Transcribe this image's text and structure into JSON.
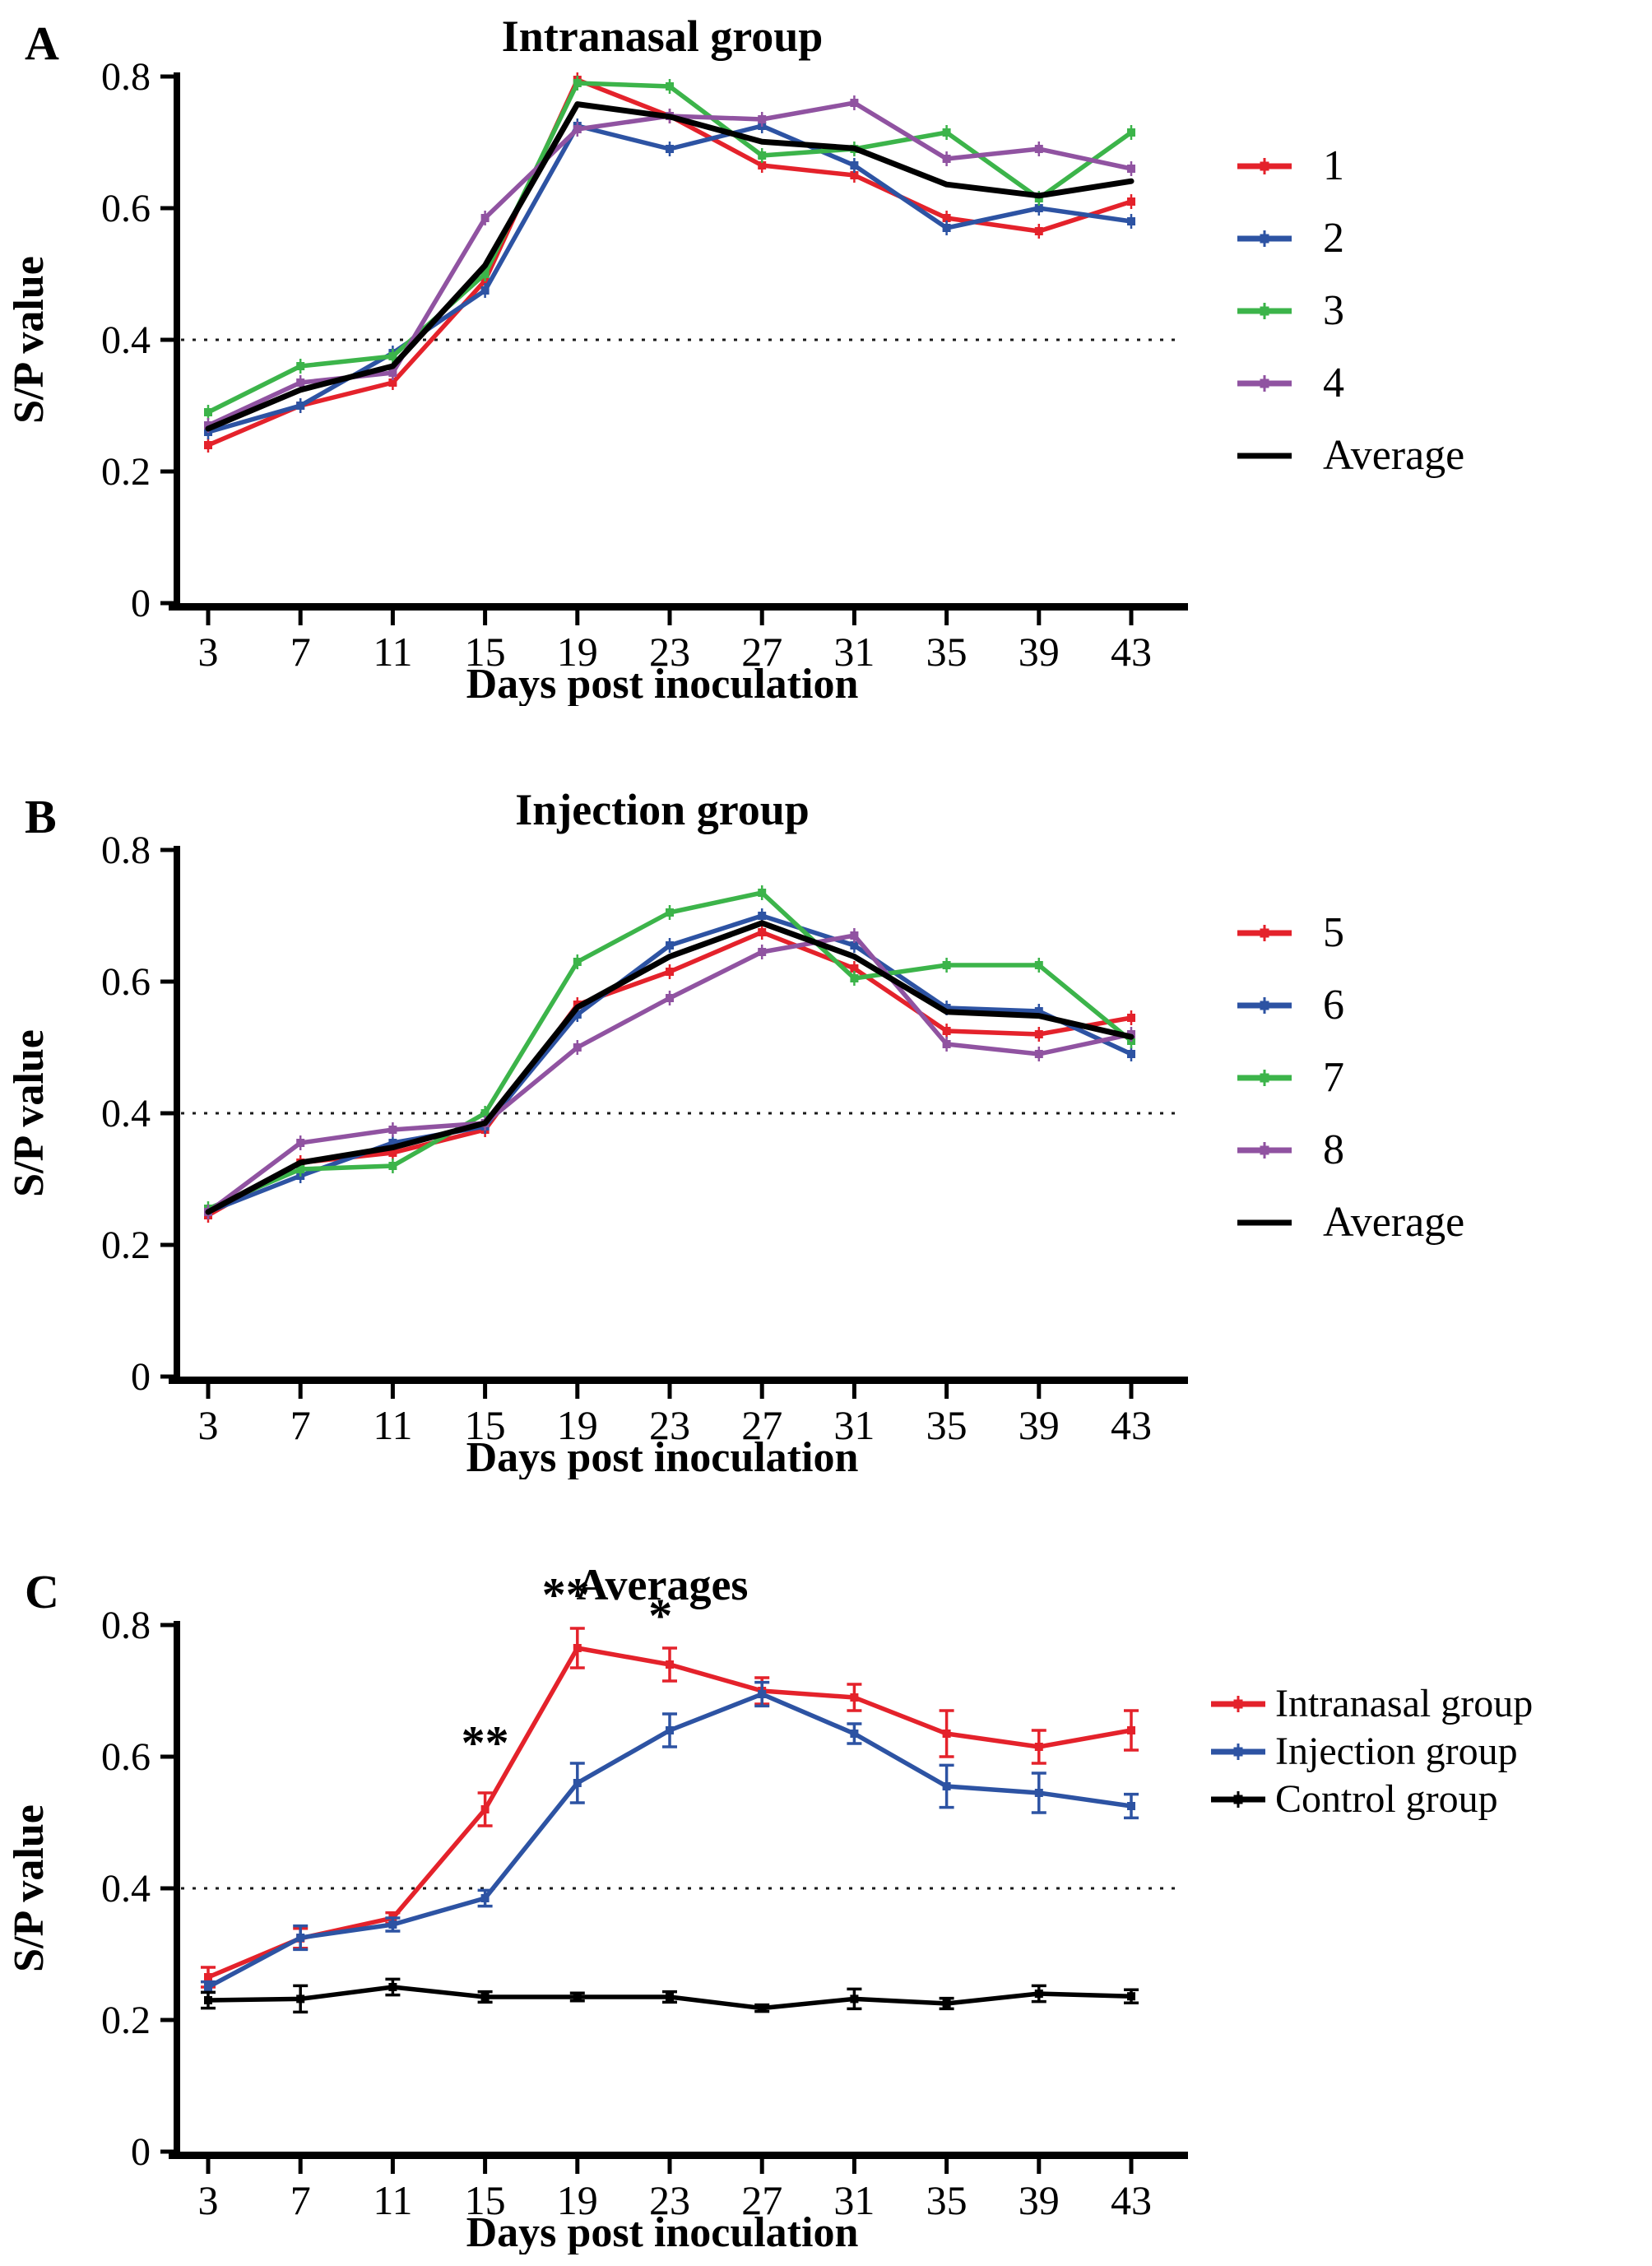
{
  "figure": {
    "background": "#ffffff",
    "threshold_value": 0.4,
    "colors": {
      "red": "#e4222b",
      "blue": "#2d53a3",
      "green": "#3cb44a",
      "purple": "#9053a1",
      "black": "#000000"
    }
  },
  "chart_data": [
    {
      "type": "line",
      "letter": "A",
      "title": "Intranasal group",
      "x_label": "Days post inoculation",
      "y_label": "S/P value",
      "x": [
        3,
        7,
        11,
        15,
        19,
        23,
        27,
        31,
        35,
        39,
        43
      ],
      "y_ticks": [
        0,
        0.2,
        0.4,
        0.6,
        0.8
      ],
      "ylim": [
        0,
        0.8
      ],
      "threshold": 0.4,
      "grid": false,
      "legend_position": "right",
      "series": [
        {
          "name": "1",
          "color": "#e4222b",
          "marker": true,
          "values": [
            0.24,
            0.3,
            0.335,
            0.49,
            0.795,
            0.74,
            0.665,
            0.65,
            0.585,
            0.565,
            0.61
          ]
        },
        {
          "name": "2",
          "color": "#2d53a3",
          "marker": true,
          "values": [
            0.26,
            0.3,
            0.38,
            0.475,
            0.725,
            0.69,
            0.725,
            0.665,
            0.57,
            0.6,
            0.58
          ]
        },
        {
          "name": "3",
          "color": "#3cb44a",
          "marker": true,
          "values": [
            0.29,
            0.36,
            0.375,
            0.5,
            0.79,
            0.785,
            0.68,
            0.69,
            0.715,
            0.615,
            0.715
          ]
        },
        {
          "name": "4",
          "color": "#9053a1",
          "marker": true,
          "values": [
            0.27,
            0.335,
            0.35,
            0.585,
            0.72,
            0.74,
            0.735,
            0.76,
            0.675,
            0.69,
            0.66
          ]
        },
        {
          "name": "Average",
          "color": "#000000",
          "marker": false,
          "values": [
            0.265,
            0.324,
            0.36,
            0.513,
            0.758,
            0.739,
            0.701,
            0.691,
            0.636,
            0.619,
            0.641
          ]
        }
      ],
      "annotations": []
    },
    {
      "type": "line",
      "letter": "B",
      "title": "Injection group",
      "x_label": "Days post inoculation",
      "y_label": "S/P value",
      "x": [
        3,
        7,
        11,
        15,
        19,
        23,
        27,
        31,
        35,
        39,
        43
      ],
      "y_ticks": [
        0,
        0.2,
        0.4,
        0.6,
        0.8
      ],
      "ylim": [
        0,
        0.8
      ],
      "threshold": 0.4,
      "grid": false,
      "legend_position": "right",
      "series": [
        {
          "name": "5",
          "color": "#e4222b",
          "marker": true,
          "values": [
            0.245,
            0.325,
            0.34,
            0.375,
            0.565,
            0.615,
            0.675,
            0.62,
            0.525,
            0.52,
            0.545
          ]
        },
        {
          "name": "6",
          "color": "#2d53a3",
          "marker": true,
          "values": [
            0.25,
            0.305,
            0.355,
            0.38,
            0.55,
            0.655,
            0.7,
            0.655,
            0.56,
            0.555,
            0.49
          ]
        },
        {
          "name": "7",
          "color": "#3cb44a",
          "marker": true,
          "values": [
            0.255,
            0.315,
            0.32,
            0.4,
            0.63,
            0.705,
            0.735,
            0.605,
            0.625,
            0.625,
            0.51
          ]
        },
        {
          "name": "8",
          "color": "#9053a1",
          "marker": true,
          "values": [
            0.25,
            0.355,
            0.375,
            0.385,
            0.5,
            0.575,
            0.645,
            0.67,
            0.505,
            0.49,
            0.52
          ]
        },
        {
          "name": "Average",
          "color": "#000000",
          "marker": false,
          "values": [
            0.25,
            0.325,
            0.348,
            0.385,
            0.561,
            0.638,
            0.689,
            0.638,
            0.554,
            0.548,
            0.516
          ]
        }
      ],
      "annotations": []
    },
    {
      "type": "line",
      "letter": "C",
      "title": "Averages",
      "x_label": "Days post inoculation",
      "y_label": "S/P value",
      "x": [
        3,
        7,
        11,
        15,
        19,
        23,
        27,
        31,
        35,
        39,
        43
      ],
      "y_ticks": [
        0,
        0.2,
        0.4,
        0.6,
        0.8
      ],
      "ylim": [
        0,
        0.8
      ],
      "threshold": 0.4,
      "grid": false,
      "legend_position": "right",
      "series": [
        {
          "name": "Intranasal group",
          "color": "#e4222b",
          "marker": true,
          "values": [
            0.265,
            0.324,
            0.355,
            0.52,
            0.765,
            0.74,
            0.7,
            0.69,
            0.635,
            0.615,
            0.64
          ],
          "errors": [
            0.015,
            0.015,
            0.008,
            0.025,
            0.03,
            0.025,
            0.02,
            0.02,
            0.035,
            0.025,
            0.03
          ]
        },
        {
          "name": "Injection group",
          "color": "#2d53a3",
          "marker": true,
          "values": [
            0.25,
            0.325,
            0.345,
            0.385,
            0.56,
            0.64,
            0.695,
            0.635,
            0.555,
            0.545,
            0.525
          ],
          "errors": [
            0.008,
            0.018,
            0.01,
            0.012,
            0.03,
            0.025,
            0.018,
            0.015,
            0.032,
            0.03,
            0.018
          ]
        },
        {
          "name": "Control group",
          "color": "#000000",
          "marker": true,
          "values": [
            0.23,
            0.232,
            0.25,
            0.235,
            0.235,
            0.235,
            0.218,
            0.232,
            0.225,
            0.24,
            0.236
          ],
          "errors": [
            0.012,
            0.02,
            0.012,
            0.008,
            0.006,
            0.008,
            0.005,
            0.015,
            0.008,
            0.012,
            0.01
          ]
        }
      ],
      "annotations": [
        {
          "text": "**",
          "day": 15,
          "value": 0.597
        },
        {
          "text": "**",
          "day": 18.5,
          "value": 0.822
        },
        {
          "text": "*",
          "day": 22.6,
          "value": 0.79
        }
      ]
    }
  ]
}
